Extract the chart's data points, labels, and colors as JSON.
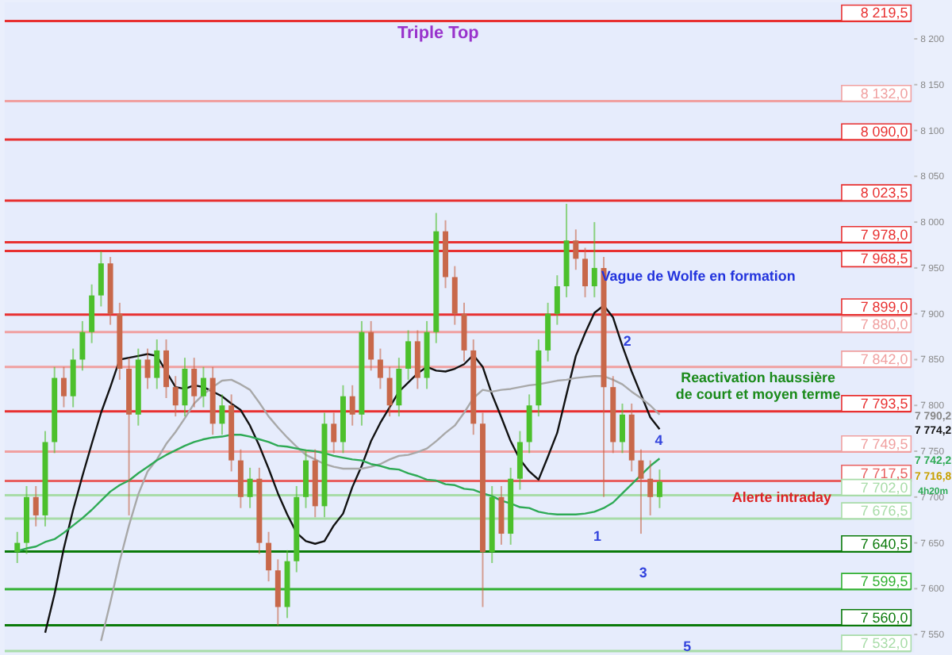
{
  "chart_data": {
    "type": "candlestick",
    "categories": [
      null,
      null,
      null,
      null,
      null,
      null,
      null,
      null,
      null,
      null,
      null,
      null,
      null,
      null,
      null,
      null,
      null,
      null,
      null,
      null,
      null,
      null,
      null,
      null,
      null,
      null,
      null,
      null,
      null,
      null,
      null,
      null,
      null,
      null,
      null,
      null,
      null,
      null,
      null,
      null,
      null,
      null,
      null,
      null,
      null,
      null,
      null,
      null,
      null,
      null,
      null,
      null,
      null,
      null,
      null,
      null,
      null,
      null,
      null,
      null,
      null,
      null,
      null,
      null,
      null,
      null,
      null,
      null,
      null,
      null,
      null,
      null,
      null,
      null,
      null,
      null,
      null,
      null,
      null,
      null,
      null,
      null,
      null,
      null,
      null,
      null,
      null,
      null,
      null,
      null,
      null,
      null,
      null,
      null,
      null,
      null
    ],
    "ohlc": [
      [
        7640,
        7662,
        7628,
        7650
      ],
      [
        7650,
        7712,
        7638,
        7700
      ],
      [
        7700,
        7712,
        7668,
        7680
      ],
      [
        7680,
        7772,
        7668,
        7760
      ],
      [
        7760,
        7842,
        7748,
        7830
      ],
      [
        7830,
        7842,
        7798,
        7810
      ],
      [
        7810,
        7862,
        7798,
        7850
      ],
      [
        7850,
        7892,
        7838,
        7880
      ],
      [
        7880,
        7932,
        7868,
        7920
      ],
      [
        7920,
        7968,
        7908,
        7955
      ],
      [
        7955,
        7962,
        7888,
        7900
      ],
      [
        7900,
        7912,
        7828,
        7840
      ],
      [
        7840,
        7852,
        7680,
        7790
      ],
      [
        7790,
        7862,
        7778,
        7850
      ],
      [
        7850,
        7862,
        7818,
        7830
      ],
      [
        7830,
        7872,
        7818,
        7860
      ],
      [
        7860,
        7872,
        7808,
        7820
      ],
      [
        7820,
        7832,
        7788,
        7800
      ],
      [
        7800,
        7852,
        7788,
        7840
      ],
      [
        7840,
        7852,
        7798,
        7810
      ],
      [
        7810,
        7842,
        7798,
        7830
      ],
      [
        7830,
        7842,
        7768,
        7780
      ],
      [
        7780,
        7812,
        7768,
        7800
      ],
      [
        7800,
        7812,
        7728,
        7740
      ],
      [
        7740,
        7752,
        7688,
        7700
      ],
      [
        7700,
        7732,
        7688,
        7720
      ],
      [
        7720,
        7732,
        7638,
        7650
      ],
      [
        7650,
        7662,
        7608,
        7620
      ],
      [
        7620,
        7632,
        7560,
        7580
      ],
      [
        7580,
        7642,
        7568,
        7630
      ],
      [
        7630,
        7712,
        7618,
        7700
      ],
      [
        7700,
        7752,
        7688,
        7740
      ],
      [
        7740,
        7752,
        7678,
        7690
      ],
      [
        7690,
        7792,
        7678,
        7780
      ],
      [
        7780,
        7792,
        7748,
        7760
      ],
      [
        7760,
        7822,
        7748,
        7810
      ],
      [
        7810,
        7822,
        7778,
        7790
      ],
      [
        7790,
        7892,
        7778,
        7880
      ],
      [
        7880,
        7892,
        7838,
        7850
      ],
      [
        7850,
        7862,
        7818,
        7830
      ],
      [
        7830,
        7842,
        7788,
        7800
      ],
      [
        7800,
        7852,
        7788,
        7840
      ],
      [
        7840,
        7882,
        7828,
        7870
      ],
      [
        7870,
        7882,
        7818,
        7830
      ],
      [
        7830,
        7892,
        7818,
        7880
      ],
      [
        7880,
        8010,
        7868,
        7990
      ],
      [
        7990,
        8002,
        7928,
        7940
      ],
      [
        7940,
        7952,
        7888,
        7900
      ],
      [
        7900,
        7912,
        7848,
        7860
      ],
      [
        7860,
        7872,
        7768,
        7780
      ],
      [
        7780,
        7792,
        7580,
        7640
      ],
      [
        7640,
        7712,
        7628,
        7700
      ],
      [
        7700,
        7712,
        7648,
        7660
      ],
      [
        7660,
        7732,
        7648,
        7720
      ],
      [
        7720,
        7772,
        7708,
        7760
      ],
      [
        7760,
        7812,
        7748,
        7800
      ],
      [
        7800,
        7872,
        7788,
        7860
      ],
      [
        7860,
        7912,
        7848,
        7900
      ],
      [
        7900,
        7942,
        7888,
        7930
      ],
      [
        7930,
        8020,
        7918,
        7980
      ],
      [
        7980,
        7992,
        7948,
        7960
      ],
      [
        7960,
        7972,
        7918,
        7930
      ],
      [
        7930,
        8000,
        7918,
        7950
      ],
      [
        7950,
        7962,
        7700,
        7820
      ],
      [
        7820,
        7832,
        7748,
        7760
      ],
      [
        7760,
        7802,
        7748,
        7790
      ],
      [
        7790,
        7802,
        7728,
        7740
      ],
      [
        7740,
        7752,
        7660,
        7720
      ],
      [
        7720,
        7740,
        7680,
        7700
      ],
      [
        7700,
        7730,
        7688,
        7716.8
      ],
      null,
      null,
      null,
      null,
      null,
      null,
      null,
      null,
      null,
      null,
      null,
      null,
      null,
      null,
      null,
      null,
      null,
      null,
      null,
      null,
      null,
      null,
      null,
      null,
      null,
      null
    ],
    "series": [
      {
        "type": "line",
        "color": "#111111",
        "values": [
          null,
          null,
          null,
          7552,
          7594,
          7644,
          7686,
          7723,
          7758,
          7792,
          7820,
          7850,
          7852,
          7854,
          7856,
          7854,
          7837,
          7820,
          7818,
          7822,
          7820,
          7815,
          7810,
          7802,
          7795,
          7778,
          7756,
          7731,
          7704,
          7681,
          7661,
          7652,
          7649,
          7652,
          7669,
          7682,
          7711,
          7734,
          7761,
          7781,
          7798,
          7815,
          7825,
          7835,
          7842,
          7838,
          7837,
          7840,
          7845,
          7855,
          7842,
          7812,
          7787,
          7761,
          7741,
          7728,
          7719,
          7744,
          7770,
          7812,
          7854,
          7879,
          7901,
          7909,
          7896,
          7865,
          7837,
          7812,
          7787,
          7774,
          null,
          null,
          null,
          null,
          null,
          null,
          null,
          null,
          null,
          null,
          null,
          null,
          null,
          null,
          null,
          null,
          null,
          null,
          null,
          null,
          null,
          null,
          null,
          null,
          null,
          null
        ]
      },
      {
        "type": "line",
        "color": "#a8a8a8",
        "values": [
          null,
          null,
          null,
          null,
          null,
          null,
          null,
          null,
          null,
          7543,
          7585,
          7630,
          7669,
          7703,
          7728,
          7741,
          7758,
          7771,
          7786,
          7802,
          7812,
          7820,
          7827,
          7828,
          7823,
          7817,
          7803,
          7788,
          7776,
          7765,
          7755,
          7746,
          7741,
          7736,
          7733,
          7731,
          7731,
          7731,
          7733,
          7736,
          7741,
          7745,
          7746,
          7749,
          7753,
          7761,
          7770,
          7778,
          7792,
          7808,
          7817,
          7815,
          7817,
          7818,
          7820,
          7822,
          7823,
          7825,
          7827,
          7828,
          7830,
          7831,
          7832,
          7832,
          7828,
          7823,
          7815,
          7808,
          7800,
          7790,
          null,
          null,
          null,
          null,
          null,
          null,
          null,
          null,
          null,
          null,
          null,
          null,
          null,
          null,
          null,
          null,
          null,
          null,
          null,
          null,
          null,
          null,
          null,
          null,
          null,
          null
        ]
      },
      {
        "type": "line",
        "color": "#2eaa55",
        "values": [
          7641,
          7644,
          7646,
          7651,
          7654,
          7661,
          7669,
          7677,
          7686,
          7696,
          7706,
          7713,
          7718,
          7726,
          7733,
          7740,
          7746,
          7751,
          7756,
          7760,
          7763,
          7765,
          7766,
          7768,
          7768,
          7766,
          7763,
          7760,
          7756,
          7755,
          7753,
          7751,
          7750,
          7748,
          7745,
          7743,
          7741,
          7740,
          7736,
          7734,
          7731,
          7730,
          7726,
          7723,
          7719,
          7718,
          7714,
          7713,
          7709,
          7708,
          7704,
          7701,
          7696,
          7693,
          7689,
          7688,
          7684,
          7682,
          7681,
          7681,
          7681,
          7682,
          7684,
          7688,
          7694,
          7704,
          7714,
          7724,
          7734,
          7742,
          null,
          null,
          null,
          null,
          null,
          null,
          null,
          null,
          null,
          null,
          null,
          null,
          null,
          null,
          null,
          null,
          null,
          null,
          null,
          null,
          null,
          null,
          null,
          null,
          null,
          null
        ]
      }
    ],
    "ylim": [
      7530,
      8240
    ],
    "yticks": [
      {
        "value": 7550,
        "label": "7 550"
      },
      {
        "value": 7600,
        "label": "7 600"
      },
      {
        "value": 7650,
        "label": "7 650"
      },
      {
        "value": 7700,
        "label": "7 700"
      },
      {
        "value": 7750,
        "label": "7 750"
      },
      {
        "value": 7800,
        "label": "7 800"
      },
      {
        "value": 7850,
        "label": "7 850"
      },
      {
        "value": 7900,
        "label": "7 900"
      },
      {
        "value": 7950,
        "label": "7 950"
      },
      {
        "value": 8000,
        "label": "8 000"
      },
      {
        "value": 8050,
        "label": "8 050"
      },
      {
        "value": 8100,
        "label": "8 100"
      },
      {
        "value": 8150,
        "label": "8 150"
      },
      {
        "value": 8200,
        "label": "8 200"
      }
    ],
    "ref_lines": [
      {
        "axis": "y",
        "value": 8219.5,
        "label": "8 219,5",
        "color": "#e83030"
      },
      {
        "axis": "y",
        "value": 8132.0,
        "label": "8 132,0",
        "color": "#f0a0a0"
      },
      {
        "axis": "y",
        "value": 8090.0,
        "label": "8 090,0",
        "color": "#e83030"
      },
      {
        "axis": "y",
        "value": 8023.5,
        "label": "8 023,5",
        "color": "#e83030"
      },
      {
        "axis": "y",
        "value": 7978.0,
        "label": "7 978,0",
        "color": "#e83030"
      },
      {
        "axis": "y",
        "value": 7968.5,
        "label": "7 968,5",
        "color": "#e83030"
      },
      {
        "axis": "y",
        "value": 7899.0,
        "label": "7 899,0",
        "color": "#e83030"
      },
      {
        "axis": "y",
        "value": 7880.0,
        "label": "7 880,0",
        "color": "#f0a0a0"
      },
      {
        "axis": "y",
        "value": 7842.0,
        "label": "7 842,0",
        "color": "#f0a0a0"
      },
      {
        "axis": "y",
        "value": 7793.5,
        "label": "7 793,5",
        "color": "#e83030"
      },
      {
        "axis": "y",
        "value": 7749.5,
        "label": "7 749,5",
        "color": "#f0a0a0"
      },
      {
        "axis": "y",
        "value": 7717.5,
        "label": "7 717,5",
        "color": "#e86060"
      },
      {
        "axis": "y",
        "value": 7702.0,
        "label": "7 702,0",
        "color": "#a8dca8"
      },
      {
        "axis": "y",
        "value": 7676.5,
        "label": "7 676,5",
        "color": "#a8dca8"
      },
      {
        "axis": "y",
        "value": 7640.5,
        "label": "7 640,5",
        "color": "#0a7a0a"
      },
      {
        "axis": "y",
        "value": 7599.5,
        "label": "7 599,5",
        "color": "#30b030"
      },
      {
        "axis": "y",
        "value": 7560.0,
        "label": "7 560,0",
        "color": "#0a7a0a"
      },
      {
        "axis": "y",
        "value": 7532.0,
        "label": "7 532,0",
        "color": "#a8dca8"
      }
    ],
    "annotations": [
      "Triple Top",
      "Vague de Wolfe en formation",
      "Reactivation haussière",
      "de court et moyen terme",
      "Alerte intraday",
      "1",
      "2",
      "3",
      "4",
      "5",
      "7 790,2",
      "7 774,2",
      "7 742,2",
      "7 716,8",
      "4h20m"
    ]
  }
}
